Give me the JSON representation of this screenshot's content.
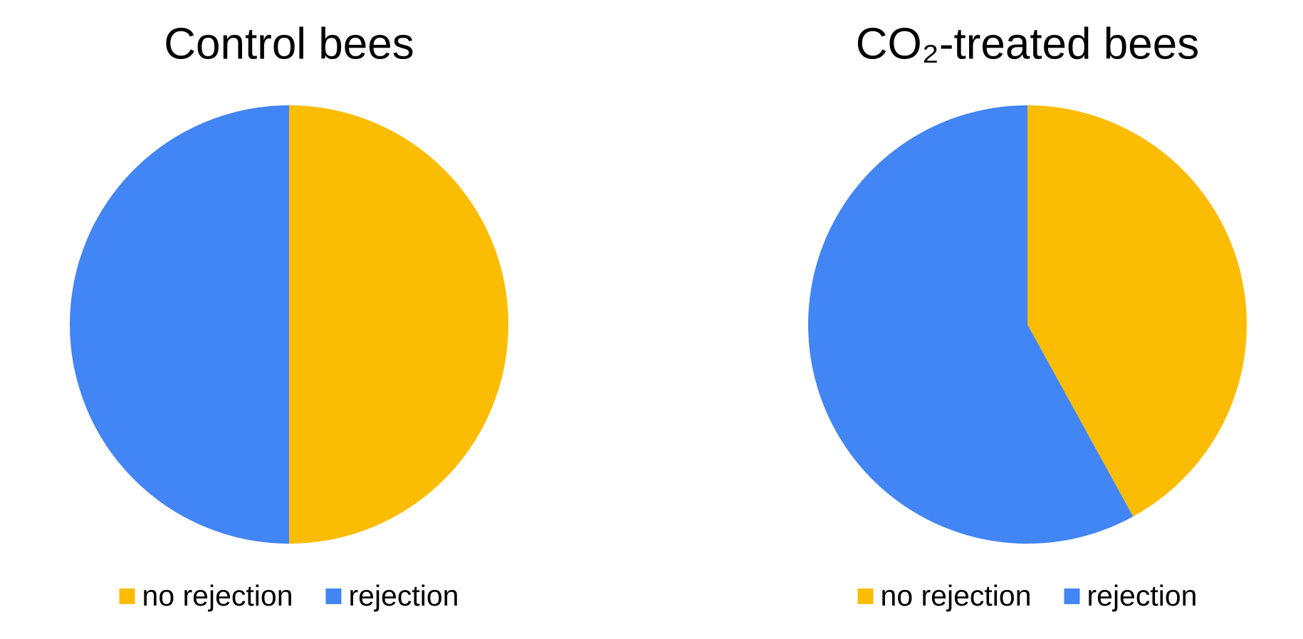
{
  "chart_data": [
    {
      "type": "pie",
      "title": "Control bees",
      "categories": [
        "no rejection",
        "rejection"
      ],
      "values": [
        50,
        50
      ],
      "colors": [
        "#fbbc04",
        "#4285f4"
      ],
      "legend": "bottom"
    },
    {
      "type": "pie",
      "title": "CO₂-treated bees",
      "categories": [
        "no rejection",
        "rejection"
      ],
      "values": [
        42,
        58
      ],
      "colors": [
        "#fbbc04",
        "#4285f4"
      ],
      "legend": "bottom"
    }
  ]
}
